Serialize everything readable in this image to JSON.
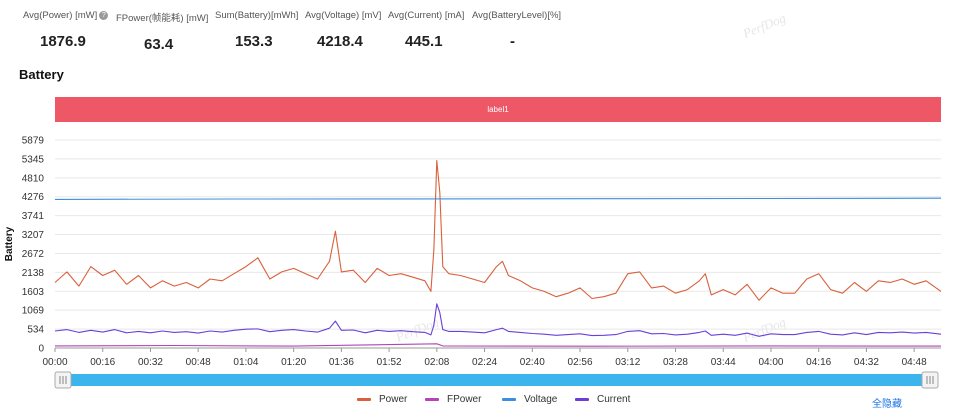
{
  "stats": [
    {
      "label": "Avg(Power) [mW]",
      "value": "1876.9",
      "has_help_icon": true
    },
    {
      "label": "FPower(帧能耗) [mW]",
      "value": "63.4"
    },
    {
      "label": "Sum(Battery)[mWh]",
      "value": "153.3"
    },
    {
      "label": "Avg(Voltage) [mV]",
      "value": "4218.4"
    },
    {
      "label": "Avg(Current) [mA]",
      "value": "445.1"
    },
    {
      "label": "Avg(BatteryLevel)[%]",
      "value": "-"
    }
  ],
  "section_title": "Battery",
  "label_bar": "label1",
  "watermark": "PerfDog",
  "hide_all_label": "全隐藏",
  "colors": {
    "power": "#d9603b",
    "fpower": "#b444b8",
    "voltage": "#3b8fe0",
    "current": "#6a3fd8",
    "label_bar": "#ee5766",
    "slider": "#3cb4ec"
  },
  "chart_data": {
    "type": "line",
    "ylabel": "Battery",
    "xlabel": "",
    "y_ticks": [
      0,
      534,
      1069,
      1603,
      2138,
      2672,
      3207,
      3741,
      4276,
      4810,
      5345,
      5879
    ],
    "ylim": [
      0,
      5879
    ],
    "x_ticks": [
      "00:00",
      "00:16",
      "00:32",
      "00:48",
      "01:04",
      "01:20",
      "01:36",
      "01:52",
      "02:08",
      "02:24",
      "02:40",
      "02:56",
      "03:12",
      "03:28",
      "03:44",
      "04:00",
      "04:16",
      "04:32",
      "04:48"
    ],
    "x_tick_seconds": [
      0,
      16,
      32,
      48,
      64,
      80,
      96,
      112,
      128,
      144,
      160,
      176,
      192,
      208,
      224,
      240,
      256,
      272,
      288
    ],
    "xlim_seconds": [
      0,
      297
    ],
    "grid": "horizontal",
    "legend_placement": "bottom-center",
    "series": [
      {
        "name": "Power",
        "color": "#d9603b",
        "points": [
          [
            0,
            1850
          ],
          [
            4,
            2150
          ],
          [
            8,
            1750
          ],
          [
            12,
            2300
          ],
          [
            16,
            2050
          ],
          [
            20,
            2200
          ],
          [
            24,
            1800
          ],
          [
            28,
            2050
          ],
          [
            32,
            1700
          ],
          [
            36,
            1900
          ],
          [
            40,
            1750
          ],
          [
            44,
            1850
          ],
          [
            48,
            1700
          ],
          [
            52,
            1950
          ],
          [
            56,
            1900
          ],
          [
            60,
            2100
          ],
          [
            64,
            2300
          ],
          [
            68,
            2550
          ],
          [
            72,
            1950
          ],
          [
            76,
            2150
          ],
          [
            80,
            2250
          ],
          [
            84,
            2100
          ],
          [
            88,
            1950
          ],
          [
            92,
            2450
          ],
          [
            94,
            3300
          ],
          [
            96,
            2150
          ],
          [
            100,
            2200
          ],
          [
            104,
            1850
          ],
          [
            108,
            2250
          ],
          [
            112,
            2050
          ],
          [
            116,
            2100
          ],
          [
            120,
            2000
          ],
          [
            124,
            1900
          ],
          [
            126,
            1600
          ],
          [
            127,
            2800
          ],
          [
            128,
            5300
          ],
          [
            129,
            4400
          ],
          [
            130,
            2300
          ],
          [
            132,
            2100
          ],
          [
            136,
            2050
          ],
          [
            140,
            1950
          ],
          [
            144,
            1850
          ],
          [
            148,
            2300
          ],
          [
            150,
            2450
          ],
          [
            152,
            2050
          ],
          [
            156,
            1900
          ],
          [
            160,
            1700
          ],
          [
            164,
            1600
          ],
          [
            168,
            1450
          ],
          [
            172,
            1550
          ],
          [
            176,
            1700
          ],
          [
            180,
            1400
          ],
          [
            184,
            1450
          ],
          [
            188,
            1550
          ],
          [
            192,
            2100
          ],
          [
            196,
            2150
          ],
          [
            200,
            1700
          ],
          [
            204,
            1750
          ],
          [
            208,
            1550
          ],
          [
            212,
            1650
          ],
          [
            216,
            1900
          ],
          [
            218,
            2100
          ],
          [
            220,
            1500
          ],
          [
            224,
            1650
          ],
          [
            228,
            1500
          ],
          [
            232,
            1800
          ],
          [
            236,
            1350
          ],
          [
            240,
            1700
          ],
          [
            244,
            1550
          ],
          [
            248,
            1550
          ],
          [
            252,
            1950
          ],
          [
            256,
            2100
          ],
          [
            260,
            1650
          ],
          [
            264,
            1550
          ],
          [
            268,
            1850
          ],
          [
            272,
            1600
          ],
          [
            276,
            1900
          ],
          [
            280,
            1850
          ],
          [
            284,
            1950
          ],
          [
            288,
            1800
          ],
          [
            292,
            1900
          ],
          [
            297,
            1600
          ]
        ]
      },
      {
        "name": "FPower",
        "color": "#b444b8",
        "points": [
          [
            0,
            60
          ],
          [
            40,
            70
          ],
          [
            80,
            55
          ],
          [
            128,
            120
          ],
          [
            130,
            60
          ],
          [
            180,
            50
          ],
          [
            240,
            60
          ],
          [
            297,
            55
          ]
        ]
      },
      {
        "name": "Voltage",
        "color": "#3b8fe0",
        "points": [
          [
            0,
            4200
          ],
          [
            60,
            4210
          ],
          [
            120,
            4215
          ],
          [
            180,
            4220
          ],
          [
            240,
            4225
          ],
          [
            297,
            4235
          ]
        ]
      },
      {
        "name": "Current",
        "color": "#6a3fd8",
        "points": [
          [
            0,
            480
          ],
          [
            4,
            520
          ],
          [
            8,
            440
          ],
          [
            12,
            500
          ],
          [
            16,
            450
          ],
          [
            20,
            520
          ],
          [
            24,
            430
          ],
          [
            28,
            470
          ],
          [
            32,
            430
          ],
          [
            36,
            480
          ],
          [
            40,
            440
          ],
          [
            44,
            460
          ],
          [
            48,
            420
          ],
          [
            52,
            480
          ],
          [
            56,
            450
          ],
          [
            60,
            500
          ],
          [
            64,
            530
          ],
          [
            68,
            540
          ],
          [
            72,
            460
          ],
          [
            76,
            500
          ],
          [
            80,
            520
          ],
          [
            84,
            480
          ],
          [
            88,
            450
          ],
          [
            92,
            560
          ],
          [
            94,
            760
          ],
          [
            96,
            500
          ],
          [
            100,
            510
          ],
          [
            104,
            430
          ],
          [
            108,
            500
          ],
          [
            112,
            470
          ],
          [
            116,
            490
          ],
          [
            120,
            460
          ],
          [
            124,
            440
          ],
          [
            126,
            370
          ],
          [
            127,
            650
          ],
          [
            128,
            1250
          ],
          [
            129,
            1000
          ],
          [
            130,
            520
          ],
          [
            132,
            470
          ],
          [
            136,
            470
          ],
          [
            140,
            450
          ],
          [
            144,
            430
          ],
          [
            148,
            520
          ],
          [
            150,
            560
          ],
          [
            152,
            470
          ],
          [
            156,
            440
          ],
          [
            160,
            410
          ],
          [
            164,
            390
          ],
          [
            168,
            360
          ],
          [
            172,
            380
          ],
          [
            176,
            400
          ],
          [
            180,
            350
          ],
          [
            184,
            360
          ],
          [
            188,
            380
          ],
          [
            192,
            470
          ],
          [
            196,
            490
          ],
          [
            200,
            400
          ],
          [
            204,
            410
          ],
          [
            208,
            370
          ],
          [
            212,
            390
          ],
          [
            216,
            440
          ],
          [
            218,
            480
          ],
          [
            220,
            360
          ],
          [
            224,
            390
          ],
          [
            228,
            360
          ],
          [
            232,
            420
          ],
          [
            236,
            330
          ],
          [
            240,
            400
          ],
          [
            244,
            380
          ],
          [
            248,
            380
          ],
          [
            252,
            440
          ],
          [
            256,
            470
          ],
          [
            260,
            390
          ],
          [
            264,
            370
          ],
          [
            268,
            430
          ],
          [
            272,
            380
          ],
          [
            276,
            440
          ],
          [
            280,
            430
          ],
          [
            284,
            450
          ],
          [
            288,
            420
          ],
          [
            292,
            440
          ],
          [
            297,
            390
          ]
        ]
      }
    ]
  }
}
